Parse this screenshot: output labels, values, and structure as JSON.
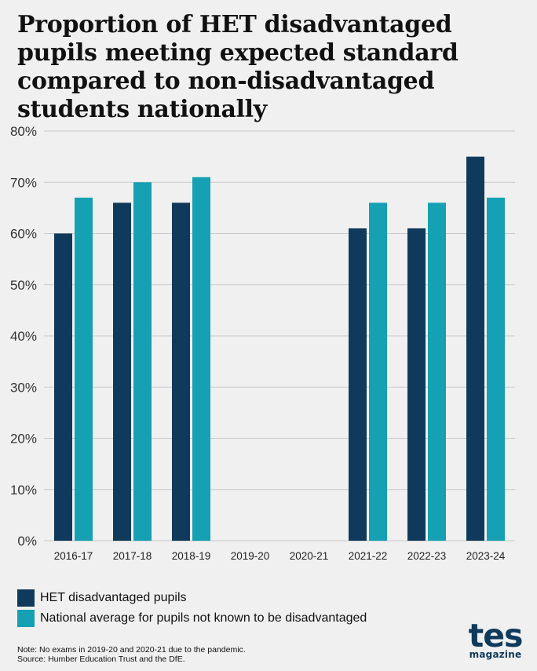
{
  "colors": {
    "het": "#0f3a5c",
    "national": "#16a0b3",
    "grid": "#c9c9c9",
    "background": "#f0f0f0"
  },
  "chart_data": {
    "type": "bar",
    "title": "Proportion of HET disadvantaged pupils meeting expected standard compared to non-disadvantaged students nationally",
    "xlabel": "",
    "ylabel": "",
    "ylim": [
      0,
      80
    ],
    "yticks": [
      0,
      10,
      20,
      30,
      40,
      50,
      60,
      70,
      80
    ],
    "ytick_labels": [
      "0%",
      "10%",
      "20%",
      "30%",
      "40%",
      "50%",
      "60%",
      "70%",
      "80%"
    ],
    "categories": [
      "2016-17",
      "2017-18",
      "2018-19",
      "2019-20",
      "2020-21",
      "2021-22",
      "2022-23",
      "2023-24"
    ],
    "series": [
      {
        "name": "HET disadvantaged pupils",
        "values": [
          60,
          66,
          66,
          null,
          null,
          61,
          61,
          75
        ]
      },
      {
        "name": "National average for pupils not known to be disadvantaged",
        "values": [
          67,
          70,
          71,
          null,
          null,
          66,
          66,
          67
        ]
      }
    ],
    "grid": true,
    "legend": "bottom-left"
  },
  "note": {
    "line1": "Note: No exams in 2019-20 and 2020-21 due to the pandemic.",
    "line2": "Source: Humber Education Trust and the DfE."
  },
  "logo": {
    "main": "tes",
    "sub": "magazine"
  }
}
